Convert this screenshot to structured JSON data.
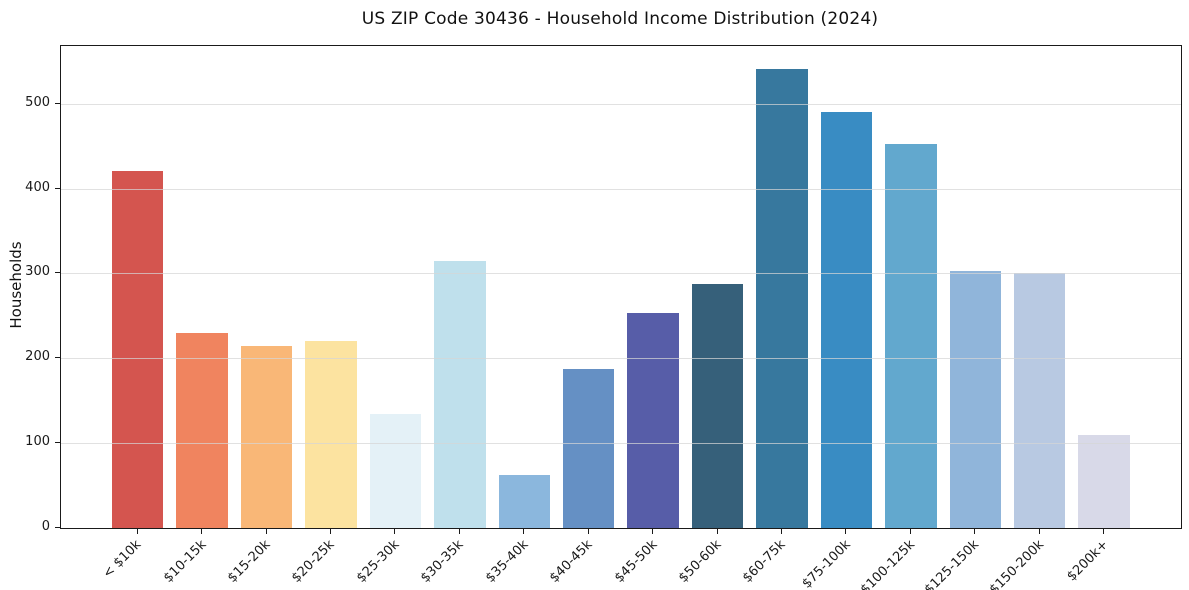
{
  "chart_data": {
    "type": "bar",
    "title": "US ZIP Code 30436 - Household Income Distribution (2024)",
    "xlabel": "",
    "ylabel": "Households",
    "categories": [
      "< $10k",
      "$10-15k",
      "$15-20k",
      "$20-25k",
      "$25-30k",
      "$30-35k",
      "$35-40k",
      "$40-45k",
      "$45-50k",
      "$50-60k",
      "$60-75k",
      "$75-100k",
      "$100-125k",
      "$125-150k",
      "$150-200k",
      "$200k+"
    ],
    "values": [
      421,
      230,
      215,
      220,
      134,
      315,
      63,
      187,
      253,
      288,
      541,
      490,
      452,
      303,
      300,
      110
    ],
    "bar_colors": [
      "#d4554f",
      "#f0845f",
      "#f9b777",
      "#fce3a0",
      "#e4f1f7",
      "#bfe0ec",
      "#8bb7dd",
      "#6590c4",
      "#575da8",
      "#36607a",
      "#37789e",
      "#398cc3",
      "#62a8ce",
      "#90b5da",
      "#b8c9e2",
      "#d8d9e8"
    ],
    "yticks": [
      0,
      100,
      200,
      300,
      400,
      500
    ],
    "ylim": [
      0,
      568
    ],
    "grid": true,
    "grid_color_rgba": "rgba(214,214,214,0.72)",
    "spine_color": "#1a1a1a",
    "background_color": "#ffffff",
    "x_tick_rotation_deg": 45,
    "legend": "none"
  }
}
